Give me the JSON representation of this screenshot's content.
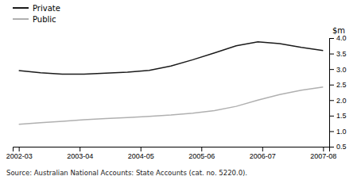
{
  "chart_data": {
    "type": "line",
    "ylabel": "$m",
    "annotations": [
      "Source: Australian National Accounts: State Accounts (cat. no. 5220.0)."
    ],
    "x": [
      0,
      0.35714285714285715,
      0.7142857142857143,
      1.0714285714285714,
      1.4285714285714286,
      1.7857142857142858,
      2.142857142857143,
      2.5,
      2.857142857142857,
      3.2142857142857144,
      3.5714285714285716,
      3.9285714285714284,
      4.285714285714286,
      4.642857142857143,
      5
    ],
    "series": [
      {
        "name": "Private",
        "color": "#1a1a1a",
        "values": [
          2.95,
          2.88,
          2.84,
          2.84,
          2.87,
          2.9,
          2.96,
          3.1,
          3.3,
          3.52,
          3.75,
          3.88,
          3.82,
          3.7,
          3.6
        ]
      },
      {
        "name": "Public",
        "color": "#b0b0b0",
        "values": [
          1.22,
          1.27,
          1.32,
          1.37,
          1.41,
          1.44,
          1.48,
          1.52,
          1.58,
          1.66,
          1.8,
          2.0,
          2.18,
          2.32,
          2.42
        ]
      }
    ],
    "xlim": [
      -0.1,
      5.1
    ],
    "xticks": [
      {
        "value": 0,
        "label": "2002-03"
      },
      {
        "value": 1,
        "label": "2003-04"
      },
      {
        "value": 2,
        "label": "2004-05"
      },
      {
        "value": 3,
        "label": "2005-06"
      },
      {
        "value": 4,
        "label": "2006-07"
      },
      {
        "value": 5,
        "label": "2007-08"
      }
    ],
    "ylim": [
      0.5,
      4.0
    ],
    "yticks": [
      0.5,
      {
        "value": 1,
        "label": "1.0"
      },
      1.5,
      {
        "value": 2,
        "label": "2.0"
      },
      2.5,
      {
        "value": 3,
        "label": "3.0"
      },
      3.5,
      {
        "value": 4,
        "label": "4.0"
      }
    ],
    "legend": "upper left",
    "grid": false
  }
}
